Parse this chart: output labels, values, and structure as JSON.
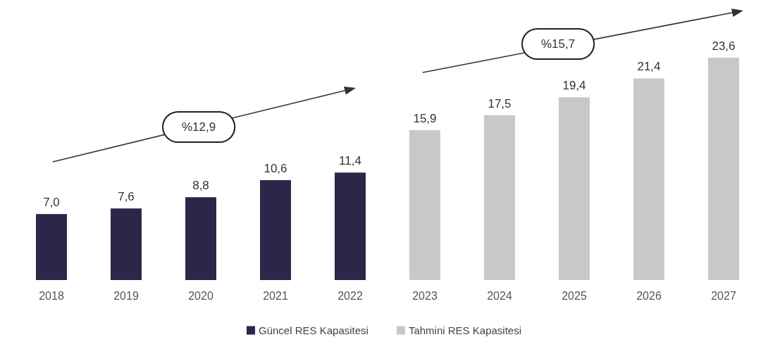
{
  "chart_data": {
    "type": "bar",
    "categories": [
      "2018",
      "2019",
      "2020",
      "2021",
      "2022",
      "2023",
      "2024",
      "2025",
      "2026",
      "2027"
    ],
    "series": [
      {
        "name": "Güncel RES Kapasitesi",
        "color": "#2e2648",
        "values": [
          7.0,
          7.6,
          8.8,
          10.6,
          11.4,
          null,
          null,
          null,
          null,
          null
        ],
        "value_labels": [
          "7,0",
          "7,6",
          "8,8",
          "10,6",
          "11,4",
          null,
          null,
          null,
          null,
          null
        ]
      },
      {
        "name": "Tahmini RES Kapasitesi",
        "color": "#c8c8c8",
        "values": [
          null,
          null,
          null,
          null,
          null,
          15.9,
          17.5,
          19.4,
          21.4,
          23.6
        ],
        "value_labels": [
          null,
          null,
          null,
          null,
          null,
          "15,9",
          "17,5",
          "19,4",
          "21,4",
          "23,6"
        ]
      }
    ],
    "annotations": [
      "%12,9",
      "%15,7"
    ],
    "legend": "bottom"
  }
}
